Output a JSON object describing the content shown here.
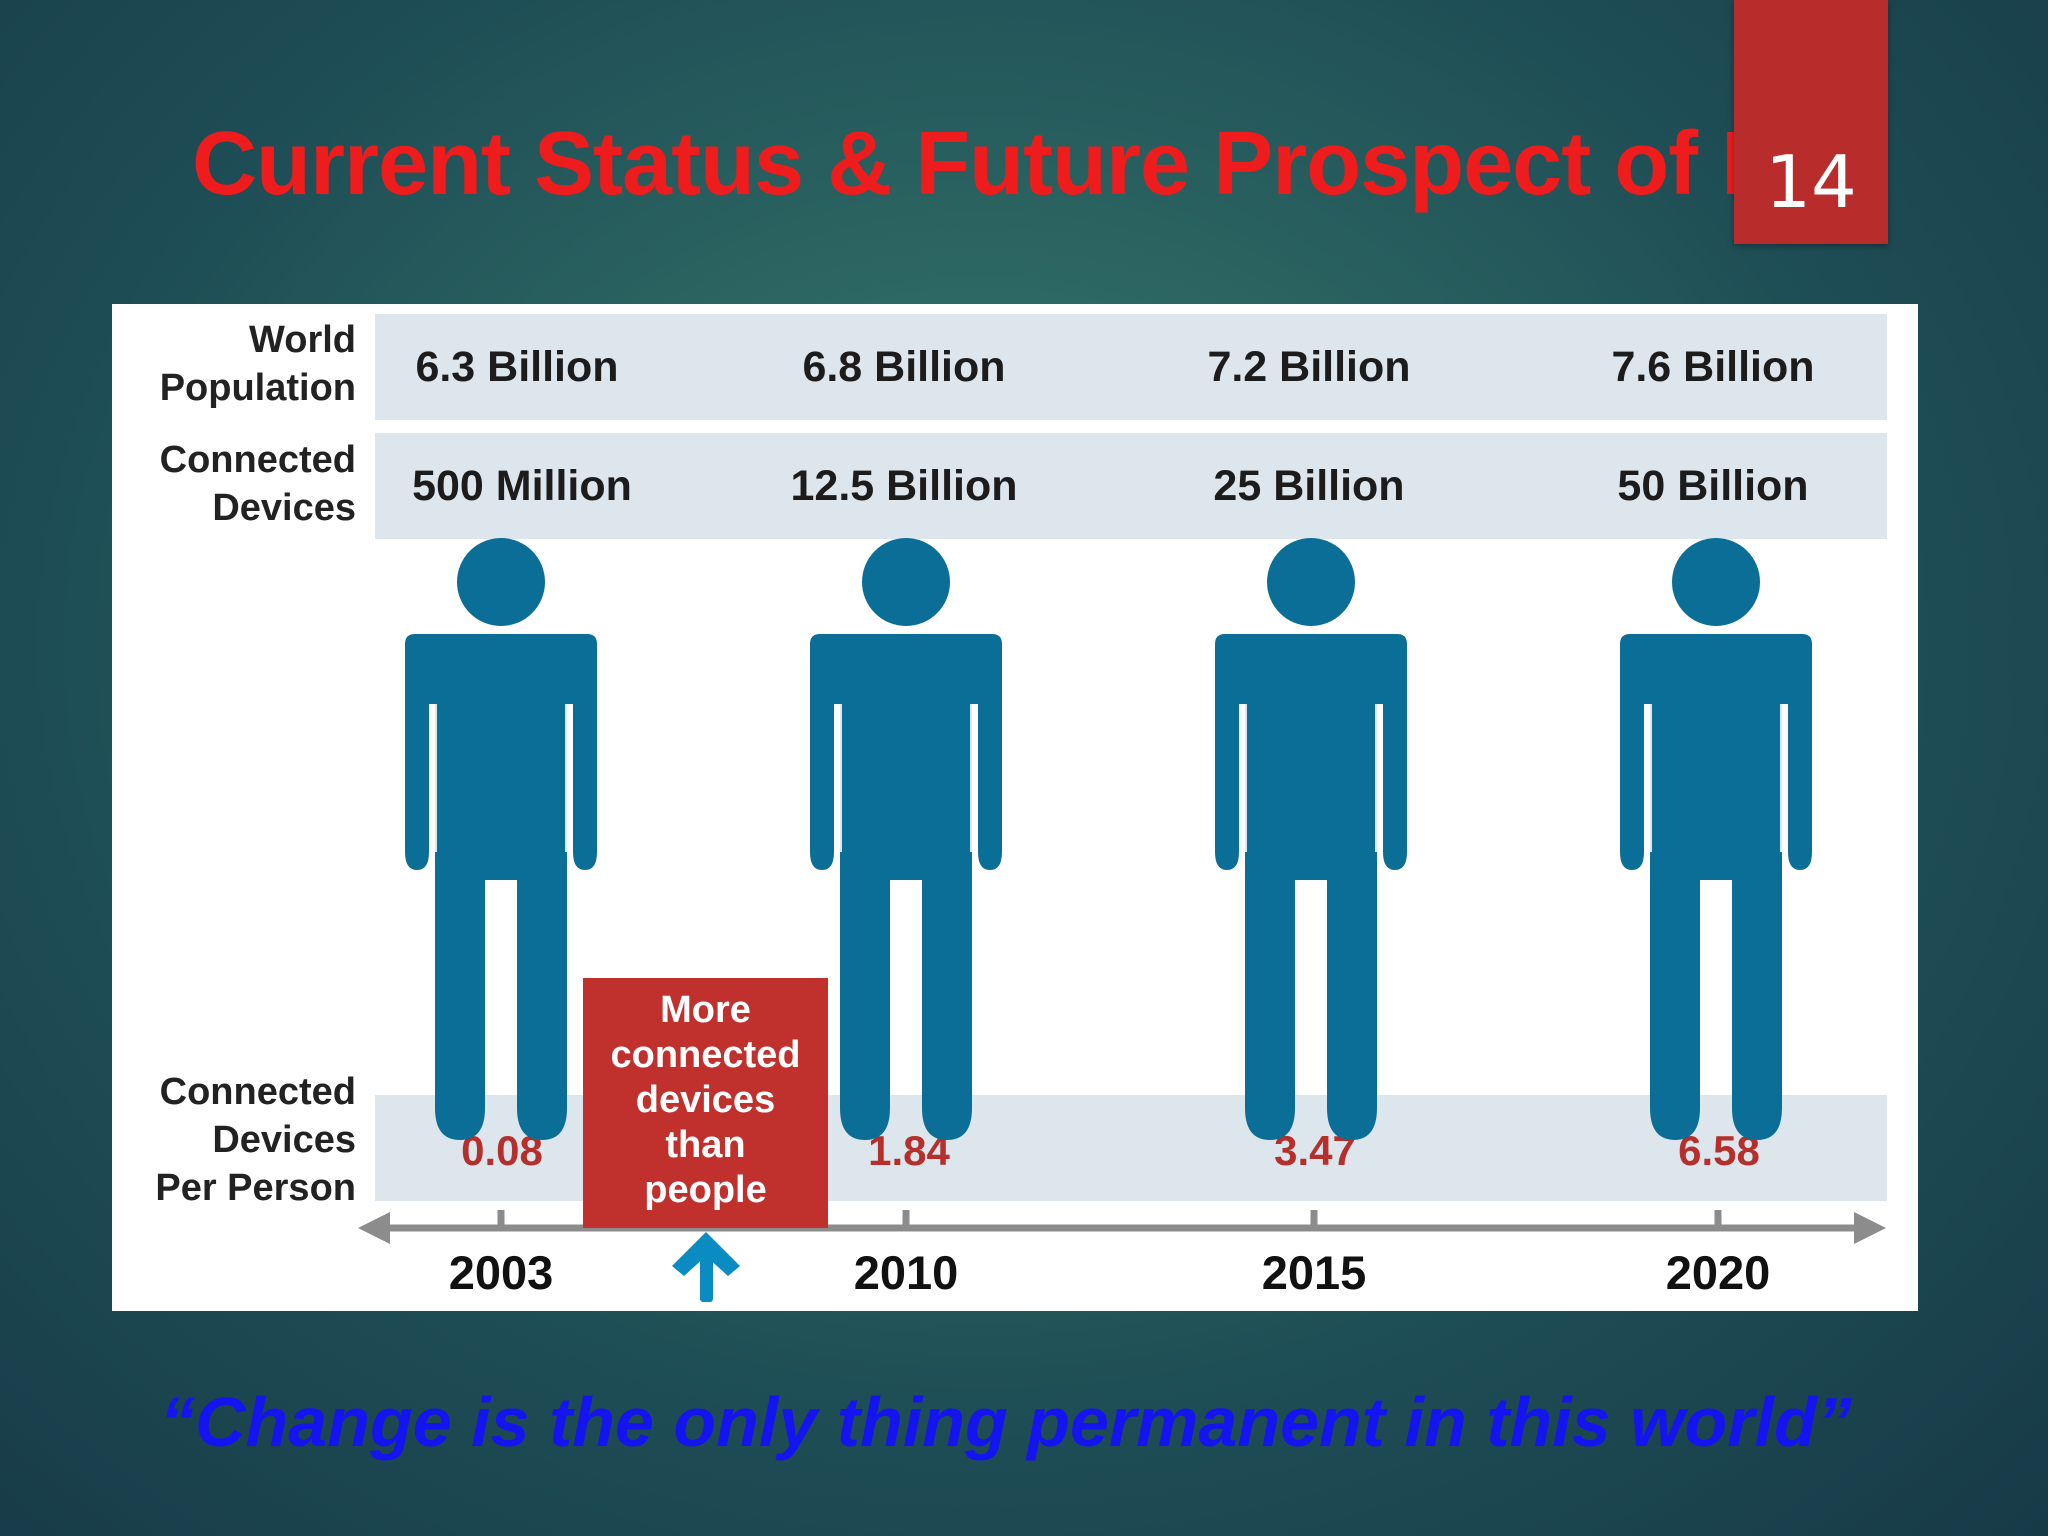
{
  "title": "Current Status & Future Prospect of IoT",
  "slide_number": "14",
  "row_labels": {
    "world_population": [
      "World",
      "Population"
    ],
    "connected_devices": [
      "Connected",
      "Devices"
    ],
    "per_person": [
      "Connected",
      "Devices",
      "Per Person"
    ]
  },
  "columns": [
    {
      "year": "2003",
      "population": "6.3 Billion",
      "devices": "500 Million",
      "per_person": "0.08"
    },
    {
      "year": "2010",
      "population": "6.8 Billion",
      "devices": "12.5 Billion",
      "per_person": "1.84"
    },
    {
      "year": "2015",
      "population": "7.2 Billion",
      "devices": "25 Billion",
      "per_person": "3.47"
    },
    {
      "year": "2020",
      "population": "7.6 Billion",
      "devices": "50 Billion",
      "per_person": "6.58"
    }
  ],
  "callout": [
    "More",
    "connected",
    "devices",
    "than",
    "people"
  ],
  "quote": "“Change is the only thing permanent in this world”",
  "colors": {
    "title": "#ee1c1c",
    "figure": "#0a6e96",
    "band": "#dde6ec",
    "ratio": "#b52f2c",
    "callout_bg": "#c0302c",
    "arrow": "#0a8cc2",
    "quote": "#1414f0"
  }
}
